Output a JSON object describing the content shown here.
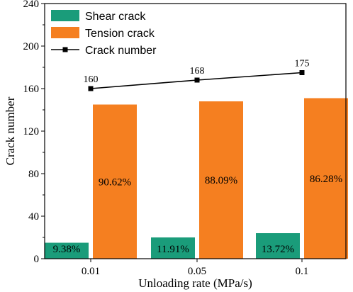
{
  "chart_data": {
    "type": "bar",
    "xlabel": "Unloading rate (MPa/s)",
    "ylabel": "Crack number",
    "ylim": [
      0,
      240
    ],
    "yticks": [
      0,
      40,
      80,
      120,
      160,
      200,
      240
    ],
    "categories": [
      "0.01",
      "0.05",
      "0.1"
    ],
    "legend_position": "top-left",
    "series": [
      {
        "name": "Shear crack",
        "kind": "bar",
        "color": "#1a9c7a",
        "values": [
          15,
          20,
          24
        ],
        "labels": [
          "9.38%",
          "11.91%",
          "13.72%"
        ]
      },
      {
        "name": "Tension crack",
        "kind": "bar",
        "color": "#f57f20",
        "values": [
          145,
          148,
          151
        ],
        "labels": [
          "90.62%",
          "88.09%",
          "86.28%"
        ]
      },
      {
        "name": "Crack number",
        "kind": "line",
        "color": "#000000",
        "values": [
          160,
          168,
          175
        ],
        "labels": [
          "160",
          "168",
          "175"
        ]
      }
    ]
  }
}
